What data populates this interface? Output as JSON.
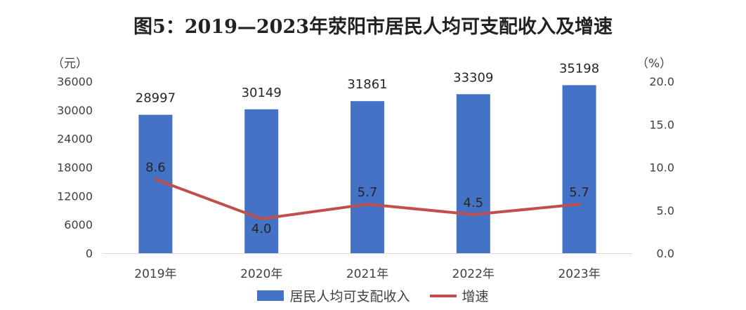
{
  "title": "图5：2019—2023年荥阳市居民人均可支配收入及增速",
  "left_unit": "（元）",
  "right_unit": "（%）",
  "chart_data": {
    "type": "bar",
    "categories": [
      "2019年",
      "2020年",
      "2021年",
      "2022年",
      "2023年"
    ],
    "series": [
      {
        "name": "居民人均可支配收入",
        "type": "bar",
        "axis": "left",
        "color": "#4472C4",
        "values": [
          28997,
          30149,
          31861,
          33309,
          35198
        ]
      },
      {
        "name": "增速",
        "type": "line",
        "axis": "right",
        "color": "#C0504D",
        "values": [
          8.6,
          4.0,
          5.7,
          4.5,
          5.7
        ]
      }
    ],
    "y_left": {
      "ylim": [
        0,
        36000
      ],
      "ticks": [
        "0",
        "6000",
        "12000",
        "18000",
        "24000",
        "30000",
        "36000"
      ]
    },
    "y_right": {
      "ylim": [
        0,
        20
      ],
      "ticks": [
        "0.0",
        "5.0",
        "10.0",
        "15.0",
        "20.0"
      ]
    },
    "legend": "bottom",
    "grid": false
  }
}
